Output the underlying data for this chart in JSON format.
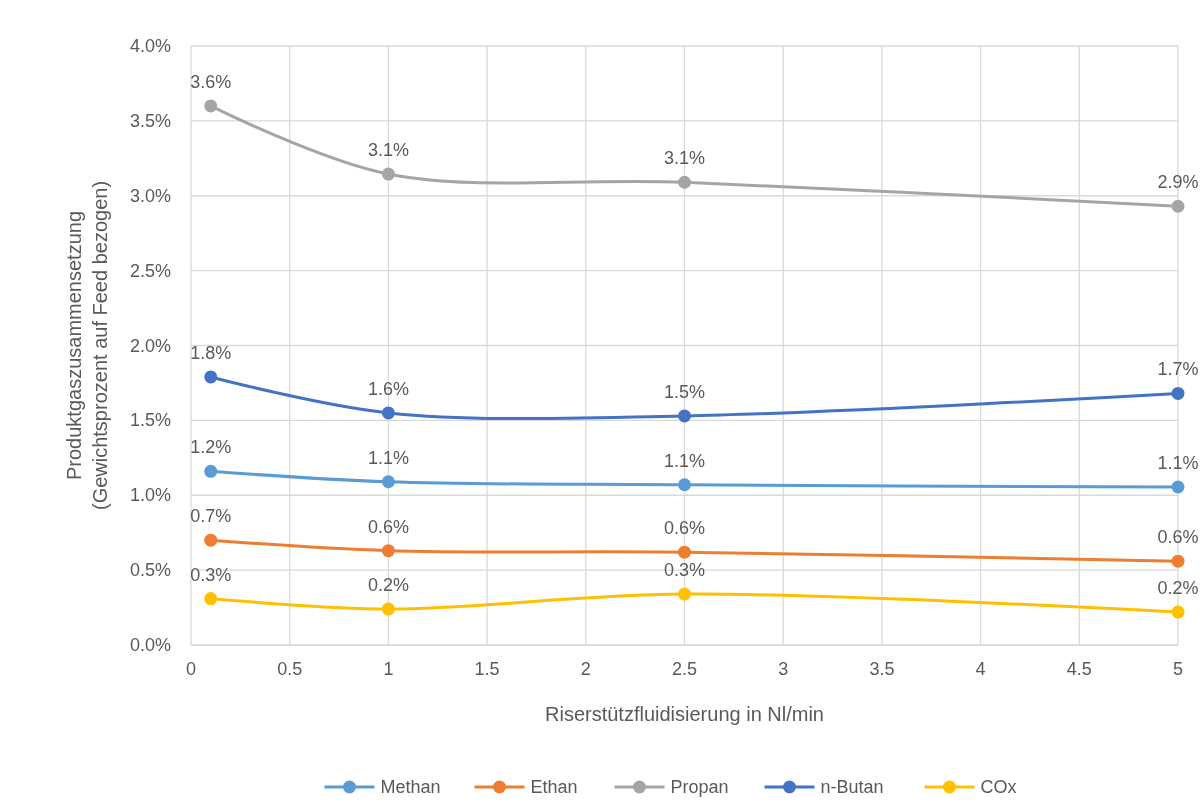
{
  "chart_data": {
    "type": "line",
    "xlabel": "Riserstützfluidisierung in Nl/min",
    "ylabel": "Produktgaszusammensetzung\n(Gewichtsprozent auf Feed bezogen)",
    "x": [
      0.1,
      1,
      2.5,
      5
    ],
    "series": [
      {
        "name": "Methan",
        "color": "#5b9bd5",
        "values": [
          1.16,
          1.09,
          1.07,
          1.055
        ],
        "value_labels": [
          "1.2%",
          "1.1%",
          "1.1%",
          "1.1%"
        ]
      },
      {
        "name": "Ethan",
        "color": "#ed7d31",
        "values": [
          0.7,
          0.63,
          0.62,
          0.56
        ],
        "value_labels": [
          "0.7%",
          "0.6%",
          "0.6%",
          "0.6%"
        ]
      },
      {
        "name": "Propan",
        "color": "#a5a5a5",
        "values": [
          3.6,
          3.145,
          3.09,
          2.93
        ],
        "value_labels": [
          "3.6%",
          "3.1%",
          "3.1%",
          "2.9%"
        ]
      },
      {
        "name": "n-Butan",
        "color": "#4472c4",
        "values": [
          1.79,
          1.55,
          1.53,
          1.68
        ],
        "value_labels": [
          "1.8%",
          "1.6%",
          "1.5%",
          "1.7%"
        ]
      },
      {
        "name": "COx",
        "color": "#ffc000",
        "values": [
          0.31,
          0.24,
          0.34,
          0.22
        ],
        "value_labels": [
          "0.3%",
          "0.2%",
          "0.3%",
          "0.2%"
        ]
      }
    ],
    "xlim": [
      0,
      5
    ],
    "xticks": [
      0,
      0.5,
      1,
      1.5,
      2,
      2.5,
      3,
      3.5,
      4,
      4.5,
      5
    ],
    "ylim": [
      0,
      4
    ],
    "yticks": [
      {
        "value": 0,
        "label": "0.0%"
      },
      {
        "value": 0.5,
        "label": "0.5%"
      },
      {
        "value": 1,
        "label": "1.0%"
      },
      {
        "value": 1.5,
        "label": "1.5%"
      },
      {
        "value": 2,
        "label": "2.0%"
      },
      {
        "value": 2.5,
        "label": "2.5%"
      },
      {
        "value": 3,
        "label": "3.0%"
      },
      {
        "value": 3.5,
        "label": "3.5%"
      },
      {
        "value": 4,
        "label": "4.0%"
      }
    ],
    "grid": true,
    "legend": "bottom",
    "marker": "circle",
    "line_style": "solid"
  }
}
